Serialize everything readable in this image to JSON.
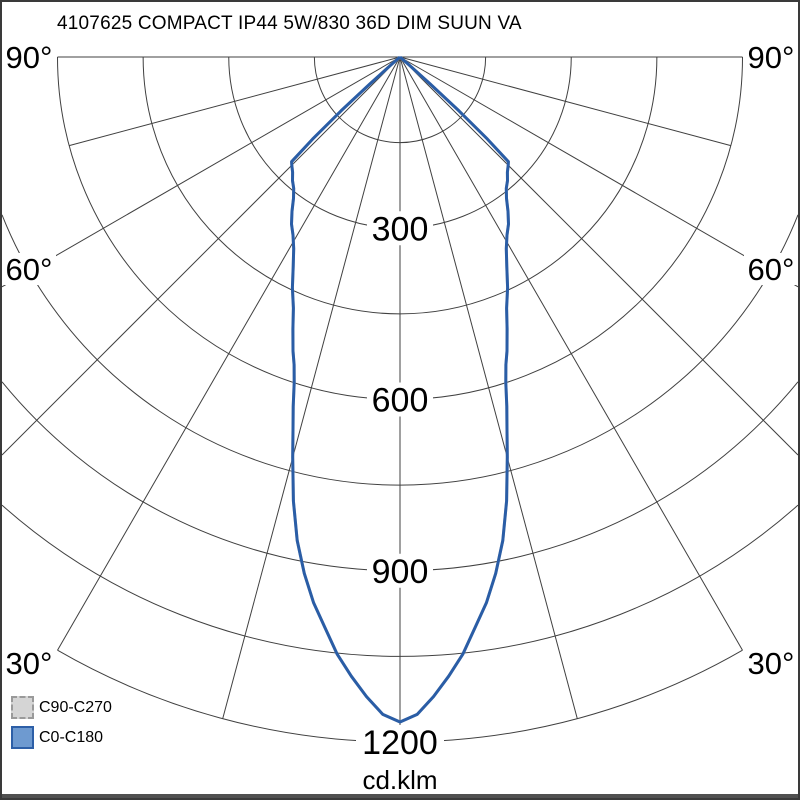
{
  "header": {
    "title": "4107625 COMPACT IP44 5W/830 36D DIM SUUN VA"
  },
  "legend": {
    "items": [
      {
        "label": "C90-C270",
        "fill": "#d5d5d5",
        "border": "#9a9a9a",
        "border_style": "dashed"
      },
      {
        "label": "C0-C180",
        "fill": "#6e9ad0",
        "border": "#2d5fa7",
        "border_style": "solid"
      }
    ]
  },
  "chart_data": {
    "type": "polar",
    "subtype": "luminous-intensity-distribution",
    "title": "4107625 COMPACT IP44 5W/830 36D DIM SUUN VA",
    "unit_label": "cd.klm",
    "angle_unit": "degrees",
    "intensity_unit": "cd/klm",
    "grid": {
      "ray_angles_deg": [
        0,
        15,
        30,
        45,
        60,
        75,
        90
      ],
      "angle_tick_labels": [
        {
          "deg": 90,
          "label": "90°"
        },
        {
          "deg": 60,
          "label": "60°"
        },
        {
          "deg": 30,
          "label": "30°"
        }
      ],
      "ring_step": 150,
      "ring_values": [
        150,
        300,
        450,
        600,
        750,
        900,
        1050,
        1200
      ],
      "labeled_rings": [
        300,
        600,
        900,
        1200
      ],
      "max_ring": 1200,
      "grid_color": "#404040",
      "background": "#ffffff"
    },
    "series": [
      {
        "name": "C0-C180",
        "color": "#2a5da6",
        "symmetric": true,
        "points_deg_cd_klm": [
          [
            0,
            1165
          ],
          [
            1.5,
            1152
          ],
          [
            3,
            1122
          ],
          [
            4.5,
            1088
          ],
          [
            6,
            1052
          ],
          [
            7.5,
            1008
          ],
          [
            9,
            968
          ],
          [
            10.5,
            920
          ],
          [
            12,
            866
          ],
          [
            13.5,
            800
          ],
          [
            15,
            726
          ],
          [
            16,
            680
          ],
          [
            17,
            640
          ],
          [
            18,
            600
          ],
          [
            19,
            570
          ],
          [
            20,
            548
          ],
          [
            21.5,
            512
          ],
          [
            23,
            478
          ],
          [
            25,
            446
          ],
          [
            27,
            412
          ],
          [
            29,
            384
          ],
          [
            31,
            364
          ],
          [
            33,
            349
          ],
          [
            35,
            330
          ],
          [
            37,
            310
          ],
          [
            39,
            296
          ],
          [
            41,
            287
          ],
          [
            43,
            276
          ],
          [
            45,
            268
          ],
          [
            46,
            264
          ],
          [
            46.8,
            210
          ],
          [
            47.6,
            140
          ],
          [
            48.2,
            70
          ],
          [
            48.6,
            20
          ],
          [
            48.8,
            0
          ]
        ]
      },
      {
        "name": "C90-C270",
        "color": "#c9c9c9",
        "symmetric": true,
        "points_deg_cd_klm": null,
        "note": "curve coincides with C0-C180 and is hidden beneath it"
      }
    ],
    "peak_intensity_cd_klm": 1165
  }
}
